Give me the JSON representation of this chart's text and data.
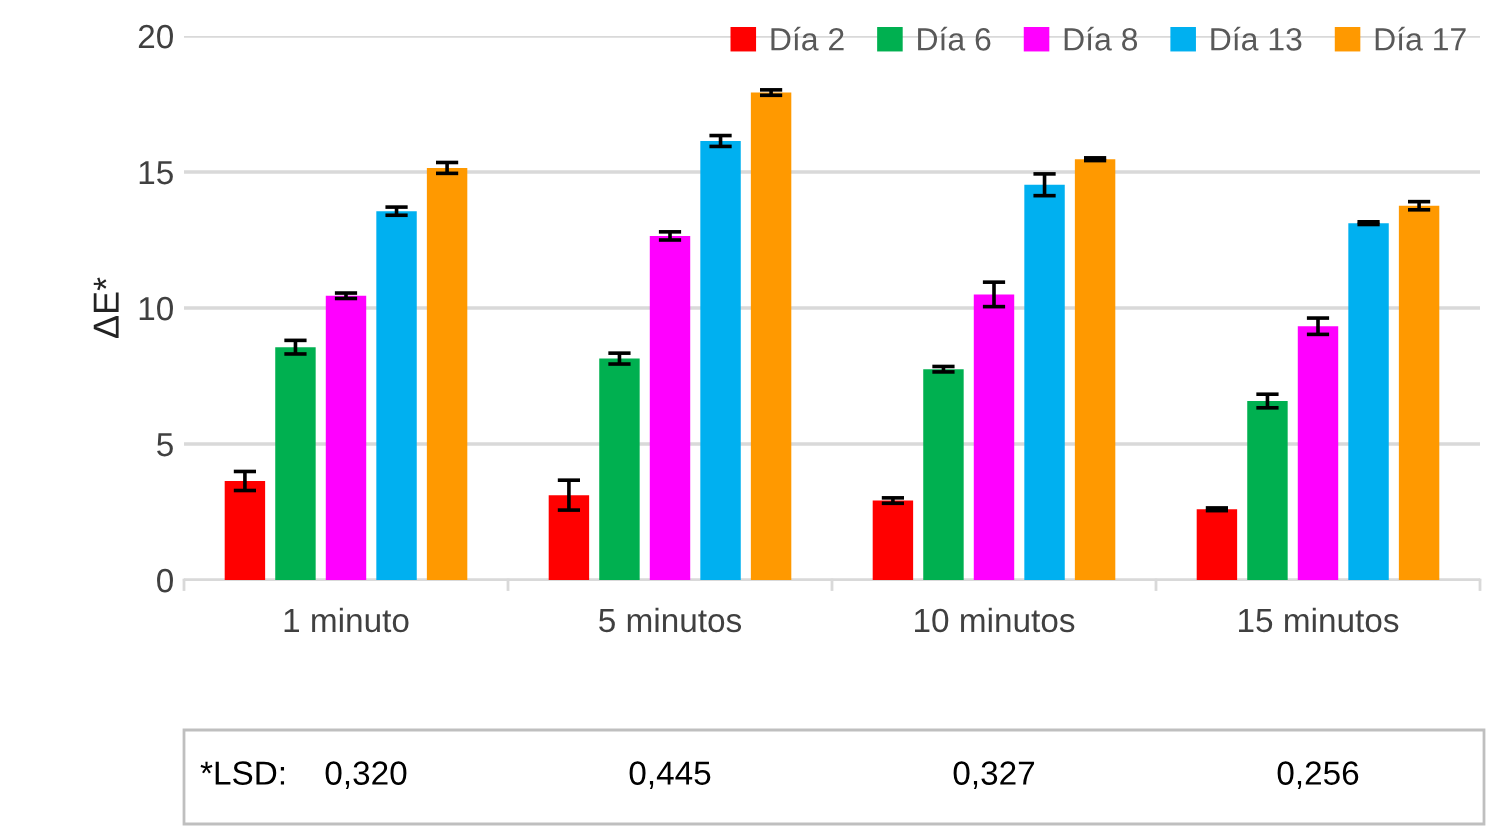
{
  "chart_data": {
    "type": "bar",
    "ylabel": "ΔE*",
    "categories": [
      "1 minuto",
      "5 minutos",
      "10 minutos",
      "15 minutos"
    ],
    "series": [
      {
        "name": "Día 2",
        "color": "#ff0000",
        "values": [
          3.64,
          3.12,
          2.92,
          2.6
        ],
        "errors": [
          0.35,
          0.55,
          0.1,
          0.05
        ]
      },
      {
        "name": "Día 6",
        "color": "#00b050",
        "values": [
          8.56,
          8.14,
          7.75,
          6.58
        ],
        "errors": [
          0.25,
          0.2,
          0.1,
          0.25
        ]
      },
      {
        "name": "Día 8",
        "color": "#ff00ff",
        "values": [
          10.45,
          12.65,
          10.5,
          9.33
        ],
        "errors": [
          0.1,
          0.15,
          0.45,
          0.3
        ]
      },
      {
        "name": "Día 13",
        "color": "#00b0f0",
        "values": [
          13.56,
          16.14,
          14.53,
          13.12
        ],
        "errors": [
          0.15,
          0.2,
          0.4,
          0.05
        ]
      },
      {
        "name": "Día 17",
        "color": "#ff9900",
        "values": [
          15.15,
          17.92,
          15.47,
          13.76
        ],
        "errors": [
          0.2,
          0.1,
          0.05,
          0.15
        ]
      }
    ],
    "ylim": [
      0,
      20
    ],
    "yticks": [
      0,
      5,
      10,
      15,
      20
    ],
    "grid": "y",
    "legend": "top right",
    "annotations": [
      "*LSD:",
      "0,320",
      "0,445",
      "0,327",
      "0,256"
    ]
  }
}
